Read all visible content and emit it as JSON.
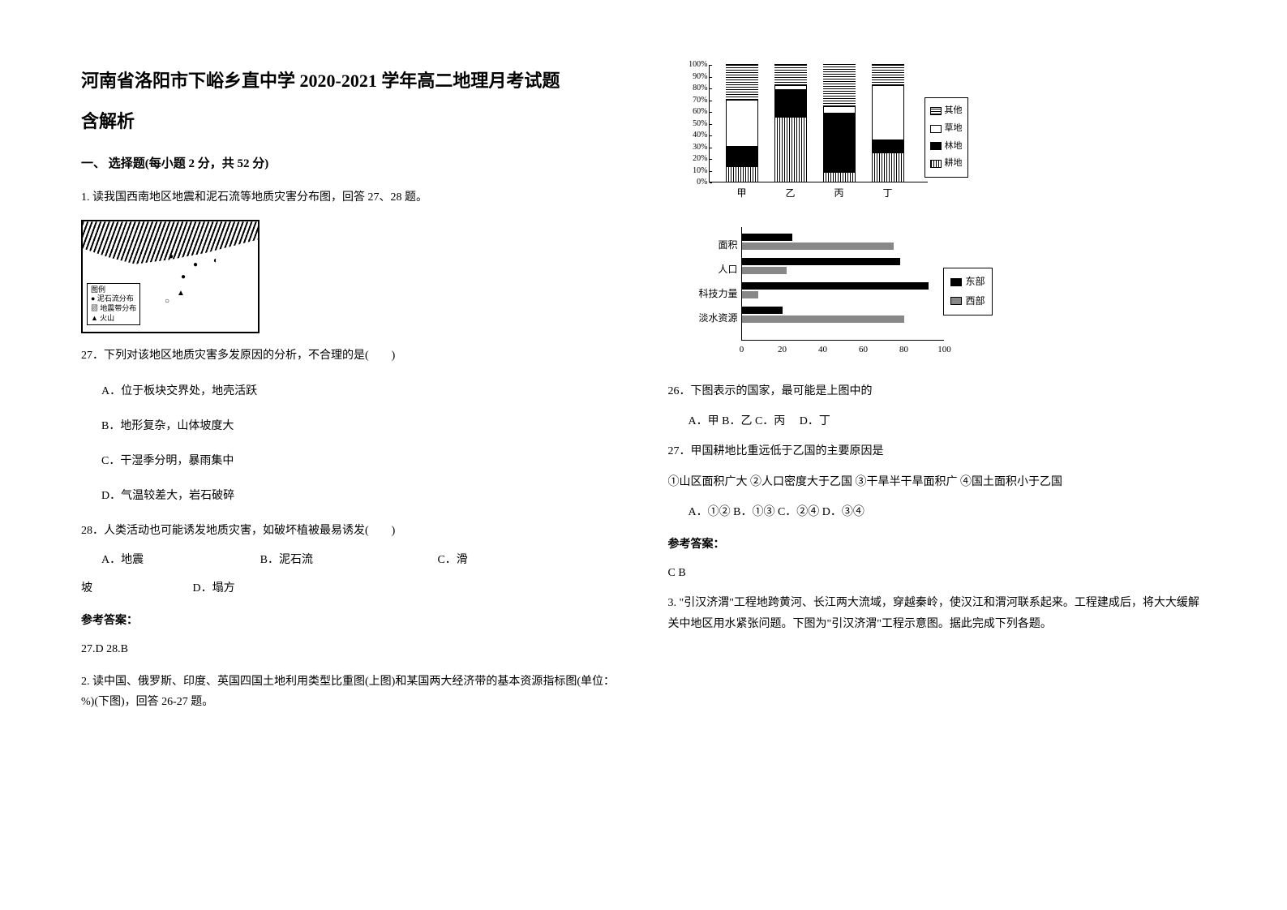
{
  "title_line1": "河南省洛阳市下峪乡直中学 2020-2021 学年高二地理月考试题",
  "title_line2": "含解析",
  "section1_header": "一、 选择题(每小题 2 分，共 52 分)",
  "q1_intro": "1. 读我国西南地区地震和泥石流等地质灾害分布图，回答 27、28 题。",
  "map_legend": {
    "title": "图例",
    "items": [
      "泥石流分布",
      "地震带分布",
      "火山"
    ]
  },
  "q27": {
    "text": "27．下列对该地区地质灾害多发原因的分析，不合理的是(　　)",
    "optA": "A．位于板块交界处，地壳活跃",
    "optB": "B．地形复杂，山体坡度大",
    "optC": "C．干湿季分明，暴雨集中",
    "optD": "D．气温较差大，岩石破碎"
  },
  "q28": {
    "text": "28．人类活动也可能诱发地质灾害，如破坏植被最易诱发(　　)",
    "optA": "A．地震",
    "optB": "B．泥石流",
    "optC": "C．滑",
    "line2_prefix": "坡",
    "optD": "D．塌方"
  },
  "answer_label": "参考答案：",
  "answer1": "27.D   28.B",
  "q2_intro": "2. 读中国、俄罗斯、印度、英国四国土地利用类型比重图(上图)和某国两大经济带的基本资源指标图(单位：%)(下图)，回答 26-27 题。",
  "stacked_chart": {
    "y_ticks": [
      "0%",
      "10%",
      "20%",
      "30%",
      "40%",
      "50%",
      "60%",
      "70%",
      "80%",
      "90%",
      "100%"
    ],
    "categories": [
      "甲",
      "乙",
      "丙",
      "丁"
    ],
    "series": [
      {
        "name": "耕地",
        "pattern": "vertical"
      },
      {
        "name": "林地",
        "pattern": "solid"
      },
      {
        "name": "草地",
        "pattern": "white"
      },
      {
        "name": "其他",
        "pattern": "horizontal"
      }
    ],
    "data": {
      "甲": {
        "耕地": 13,
        "林地": 17,
        "草地": 40,
        "其他": 30
      },
      "乙": {
        "耕地": 55,
        "林地": 23,
        "草地": 4,
        "其他": 18
      },
      "丙": {
        "耕地": 8,
        "林地": 50,
        "草地": 6,
        "其他": 36
      },
      "丁": {
        "耕地": 25,
        "林地": 10,
        "草地": 47,
        "其他": 18
      }
    },
    "legend_items": [
      "其他",
      "草地",
      "林地",
      "耕地"
    ]
  },
  "hbar_chart": {
    "categories": [
      "面积",
      "人口",
      "科技力量",
      "淡水资源"
    ],
    "x_ticks": [
      "0",
      "20",
      "40",
      "60",
      "80",
      "100"
    ],
    "data": {
      "面积": {
        "东部": 25,
        "西部": 75
      },
      "人口": {
        "东部": 78,
        "西部": 22
      },
      "科技力量": {
        "东部": 92,
        "西部": 8
      },
      "淡水资源": {
        "东部": 20,
        "西部": 80
      }
    },
    "legend": [
      "东部",
      "西部"
    ]
  },
  "q26": {
    "text": "26．下图表示的国家，最可能是上图中的",
    "options": "A．甲  B．乙  C．丙　  D．丁"
  },
  "q27b": {
    "text": "27．甲国耕地比重远低于乙国的主要原因是",
    "sub": "①山区面积广大  ②人口密度大于乙国  ③干旱半干旱面积广  ④国土面积小于乙国",
    "options": "A．①②  B．①③   C．②④  D．③④"
  },
  "answer2_label": "参考答案：",
  "answer2": "C  B",
  "q3_intro": "3. \"引汉济渭\"工程地跨黄河、长江两大流域，穿越秦岭，使汉江和渭河联系起来。工程建成后，将大大缓解关中地区用水紧张问题。下图为\"引汉济渭\"工程示意图。据此完成下列各题。"
}
